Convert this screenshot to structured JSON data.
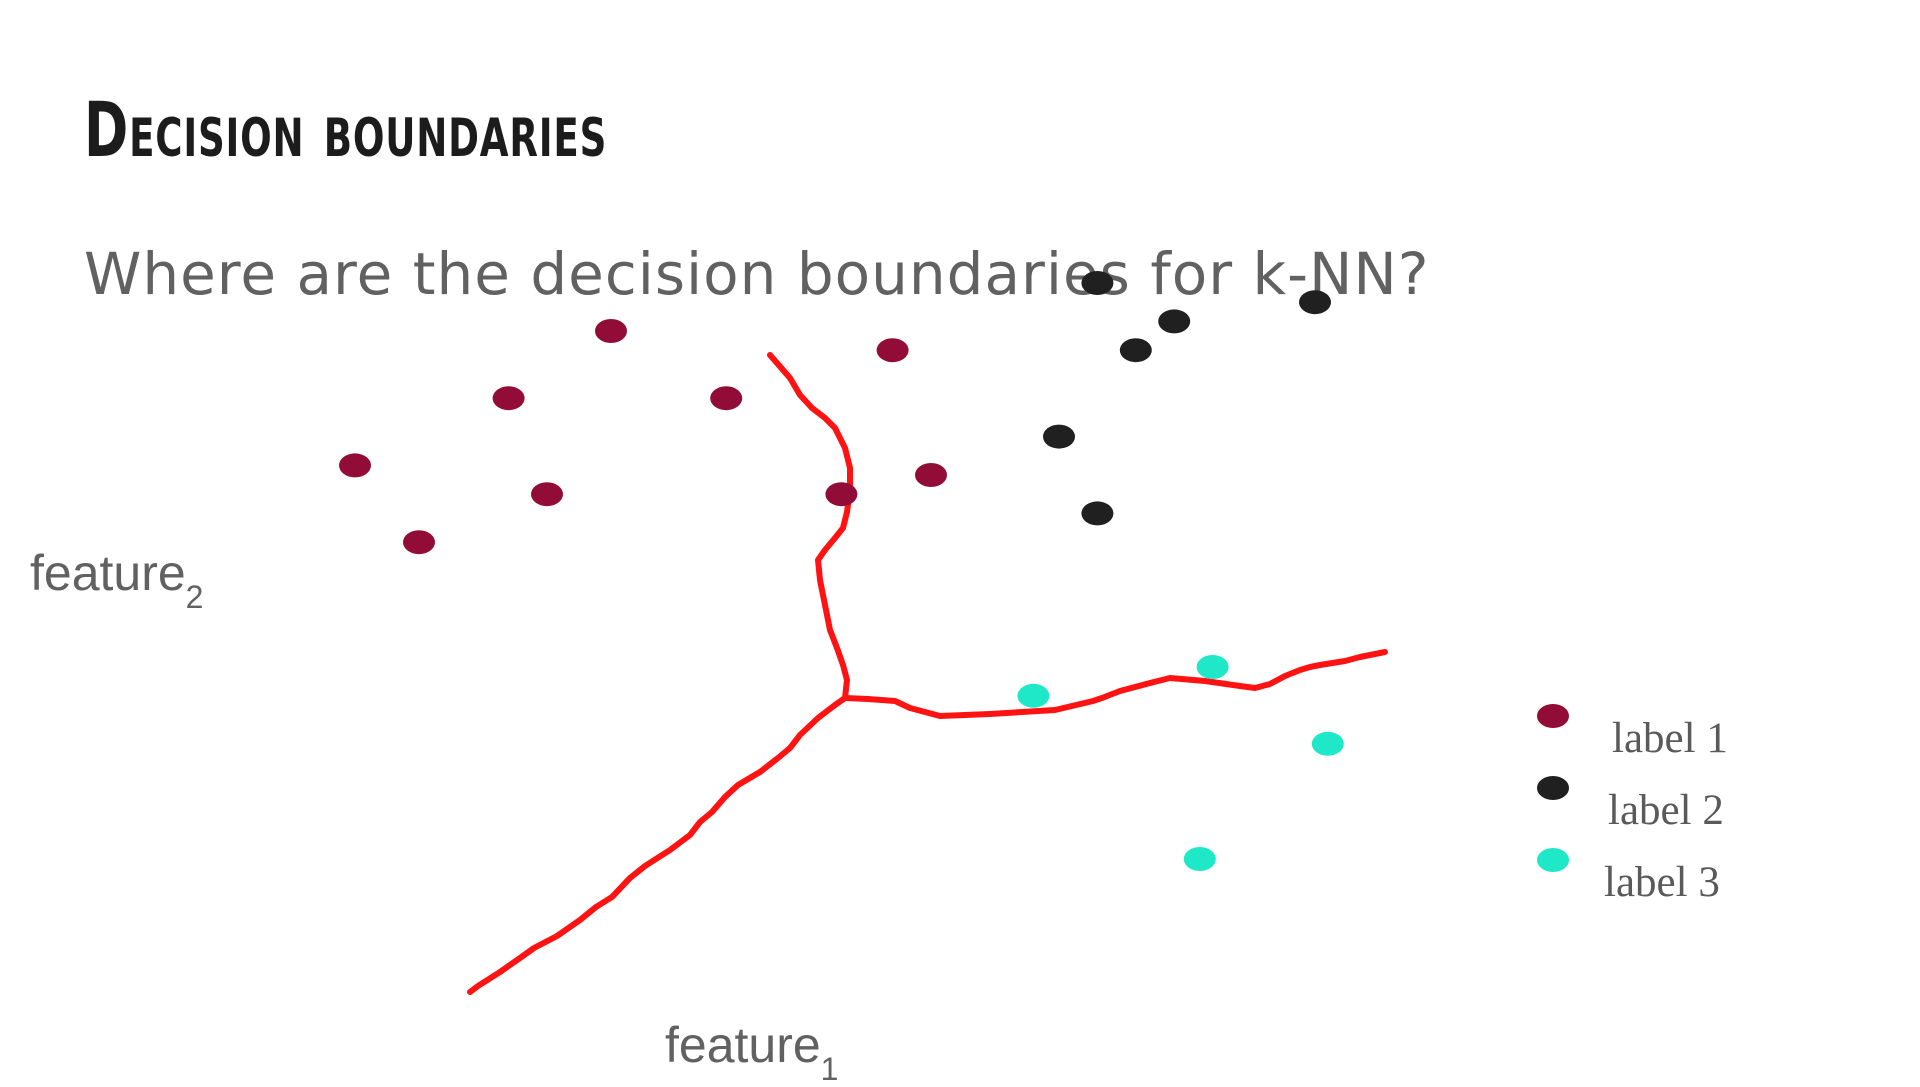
{
  "slide": {
    "title": "Decision boundaries",
    "subtitle": "Where are the decision boundaries for k-NN?"
  },
  "axes": {
    "x_label": "feature",
    "x_sub": "1",
    "y_label": "feature",
    "y_sub": "2"
  },
  "colors": {
    "label_1": "#920c38",
    "label_2": "#202020",
    "label_3": "#1ee8c8",
    "boundary": "#ff1212"
  },
  "legend": [
    {
      "name": "label 1",
      "color_key": "label_1"
    },
    {
      "name": "label 2",
      "color_key": "label_2"
    },
    {
      "name": "label 3",
      "color_key": "label_3"
    }
  ],
  "chart_data": {
    "type": "scatter",
    "series": [
      {
        "name": "label 1",
        "points": [
          [
            2.0,
            6.5
          ],
          [
            4.2,
            6.3
          ],
          [
            1.2,
            5.8
          ],
          [
            2.9,
            5.8
          ],
          [
            1.5,
            4.8
          ],
          [
            3.8,
            4.8
          ],
          [
            4.5,
            5.0
          ],
          [
            0.0,
            5.1
          ],
          [
            0.5,
            4.3
          ]
        ]
      },
      {
        "name": "label 2",
        "points": [
          [
            5.8,
            7.0
          ],
          [
            7.5,
            6.8
          ],
          [
            6.4,
            6.6
          ],
          [
            5.5,
            5.4
          ],
          [
            5.8,
            4.6
          ],
          [
            6.1,
            6.3
          ]
        ]
      },
      {
        "name": "label 3",
        "points": [
          [
            6.7,
            3.0
          ],
          [
            5.3,
            2.7
          ],
          [
            7.6,
            2.2
          ],
          [
            6.6,
            1.0
          ]
        ]
      }
    ]
  }
}
